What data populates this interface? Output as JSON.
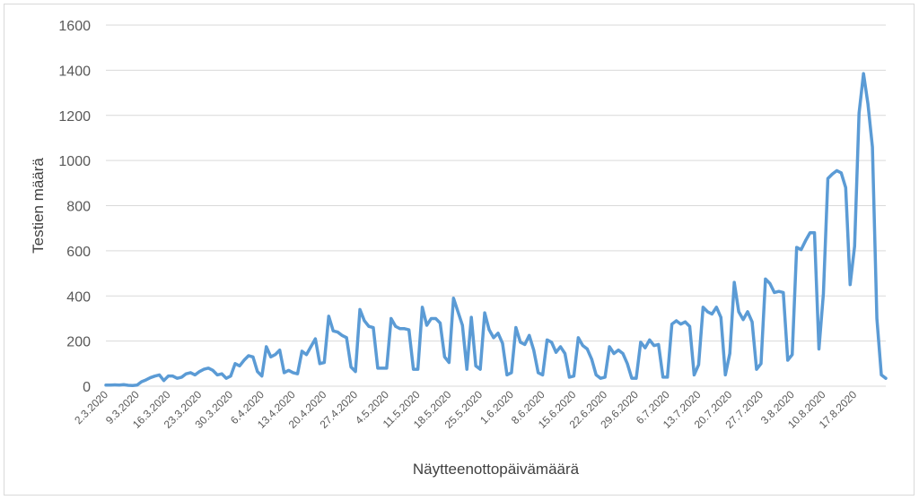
{
  "chart_data": {
    "type": "line",
    "title": "",
    "xlabel": "Näytteenottopäivämäärä",
    "ylabel": "Testien määrä",
    "ylim": [
      0,
      1600
    ],
    "yticks": [
      0,
      200,
      400,
      600,
      800,
      1000,
      1200,
      1400,
      1600
    ],
    "grid": "horizontal",
    "legend": "none",
    "colors": {
      "line": "#5b9bd5",
      "grid": "#d9d9d9",
      "text": "#595959"
    },
    "x_start": "2.3.2020",
    "x_step_days": 1,
    "xtick_labels": [
      "2.3.2020",
      "9.3.2020",
      "16.3.2020",
      "23.3.2020",
      "30.3.2020",
      "6.4.2020",
      "13.4.2020",
      "20.4.2020",
      "27.4.2020",
      "4.5.2020",
      "11.5.2020",
      "18.5.2020",
      "25.5.2020",
      "1.6.2020",
      "8.6.2020",
      "15.6.2020",
      "22.6.2020",
      "29.6.2020",
      "6.7.2020",
      "13.7.2020",
      "20.7.2020",
      "27.7.2020",
      "3.8.2020",
      "10.8.2020",
      "17.8.2020"
    ],
    "series": [
      {
        "values": [
          5,
          5,
          6,
          5,
          7,
          4,
          3,
          5,
          20,
          28,
          38,
          45,
          50,
          25,
          45,
          45,
          35,
          40,
          55,
          60,
          50,
          65,
          75,
          80,
          70,
          50,
          55,
          35,
          45,
          100,
          90,
          115,
          135,
          130,
          65,
          45,
          175,
          130,
          140,
          160,
          60,
          70,
          60,
          55,
          155,
          140,
          175,
          210,
          100,
          105,
          310,
          245,
          240,
          225,
          215,
          85,
          65,
          340,
          290,
          265,
          260,
          80,
          80,
          80,
          300,
          265,
          255,
          255,
          250,
          75,
          75,
          350,
          270,
          300,
          300,
          280,
          130,
          105,
          390,
          330,
          270,
          75,
          305,
          90,
          75,
          325,
          250,
          215,
          235,
          190,
          50,
          60,
          260,
          195,
          185,
          225,
          160,
          60,
          50,
          205,
          195,
          150,
          175,
          145,
          40,
          45,
          215,
          180,
          165,
          120,
          50,
          35,
          40,
          175,
          145,
          160,
          145,
          100,
          35,
          35,
          195,
          170,
          205,
          180,
          185,
          40,
          40,
          275,
          290,
          275,
          285,
          265,
          50,
          95,
          350,
          330,
          320,
          350,
          305,
          50,
          145,
          460,
          330,
          295,
          330,
          285,
          75,
          100,
          475,
          455,
          415,
          420,
          415,
          115,
          140,
          615,
          605,
          645,
          680,
          680,
          165,
          410,
          920,
          940,
          955,
          945,
          880,
          450,
          620,
          1210,
          1385,
          1250,
          1060,
          300,
          50,
          35
        ]
      }
    ]
  }
}
